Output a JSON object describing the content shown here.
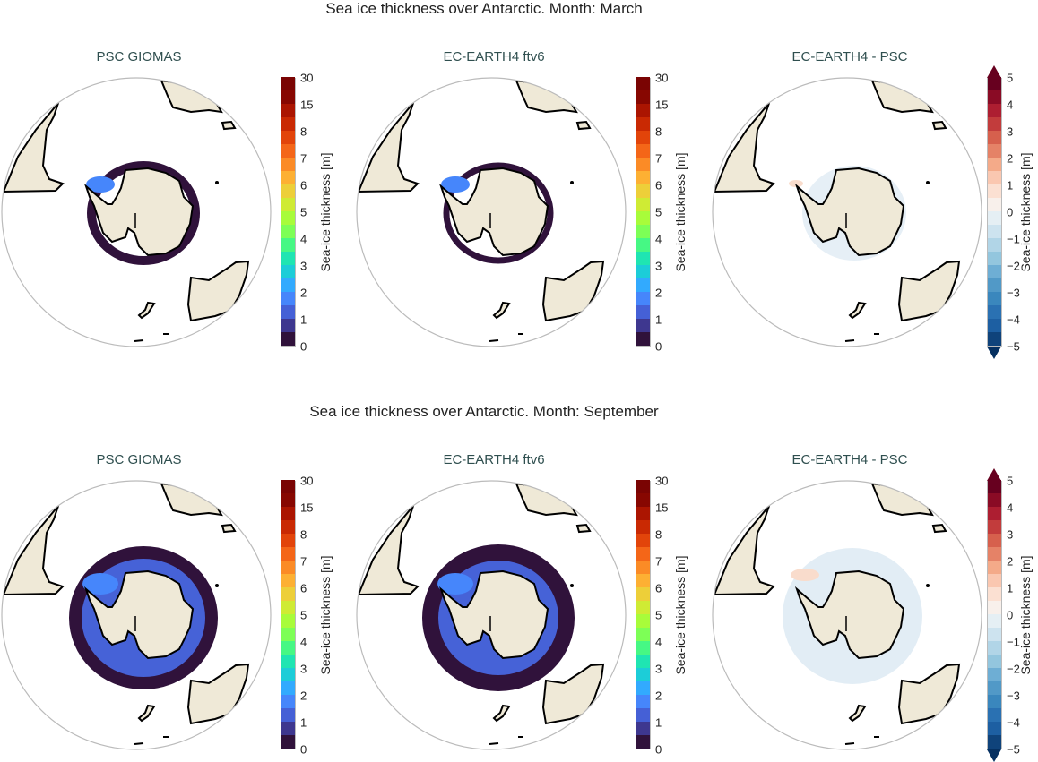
{
  "rows": [
    {
      "title": "Sea ice thickness over Antarctic. Month: March",
      "month": "March"
    },
    {
      "title": "Sea ice thickness over Antarctic. Month: September",
      "month": "September"
    }
  ],
  "panels": [
    {
      "title": "PSC GIOMAS",
      "kind": "abs"
    },
    {
      "title": "EC-EARTH4 ftv6",
      "kind": "abs"
    },
    {
      "title": "EC-EARTH4 -  PSC",
      "kind": "diff"
    }
  ],
  "colorbar_label": "Sea-ice thickness [m]",
  "abs_colorbar": {
    "ticks": [
      "0",
      "1",
      "2",
      "3",
      "4",
      "5",
      "6",
      "7",
      "8",
      "15",
      "30"
    ],
    "colors": [
      "#30123b",
      "#3e378f",
      "#4560d6",
      "#4686fb",
      "#32aafe",
      "#1ccdd8",
      "#1fe5b2",
      "#46f884",
      "#7dff56",
      "#a8fc3a",
      "#cfeb34",
      "#edcf39",
      "#fdb033",
      "#fb8b26",
      "#f46618",
      "#e2440a",
      "#c92903",
      "#ab1501",
      "#870701",
      "#7a0403"
    ]
  },
  "diff_colorbar": {
    "ticks": [
      "−5",
      "−4",
      "−3",
      "−2",
      "−1",
      "0",
      "1",
      "2",
      "3",
      "4",
      "5"
    ],
    "colors": [
      "#0f437b",
      "#1d5fa2",
      "#2a71b2",
      "#3a87bd",
      "#5199c7",
      "#6eaed4",
      "#93c6de",
      "#b1d5e7",
      "#cde3ef",
      "#e5eff4",
      "#f8f0eb",
      "#fbe0d2",
      "#fac7b0",
      "#f4aa89",
      "#e58267",
      "#d6604d",
      "#c23c3c",
      "#ad1e31",
      "#8a0b25",
      "#67001f"
    ],
    "extend_low": "#053061",
    "extend_high": "#67001f"
  },
  "land_color": "#efe9d7",
  "ice_colors": {
    "edge": "#30123b",
    "thin": "#3e378f",
    "mid": "#4662d7",
    "thick": "#4686fb",
    "diff_neg": "#dbe8f2",
    "diff_pos": "#f9dccc"
  }
}
